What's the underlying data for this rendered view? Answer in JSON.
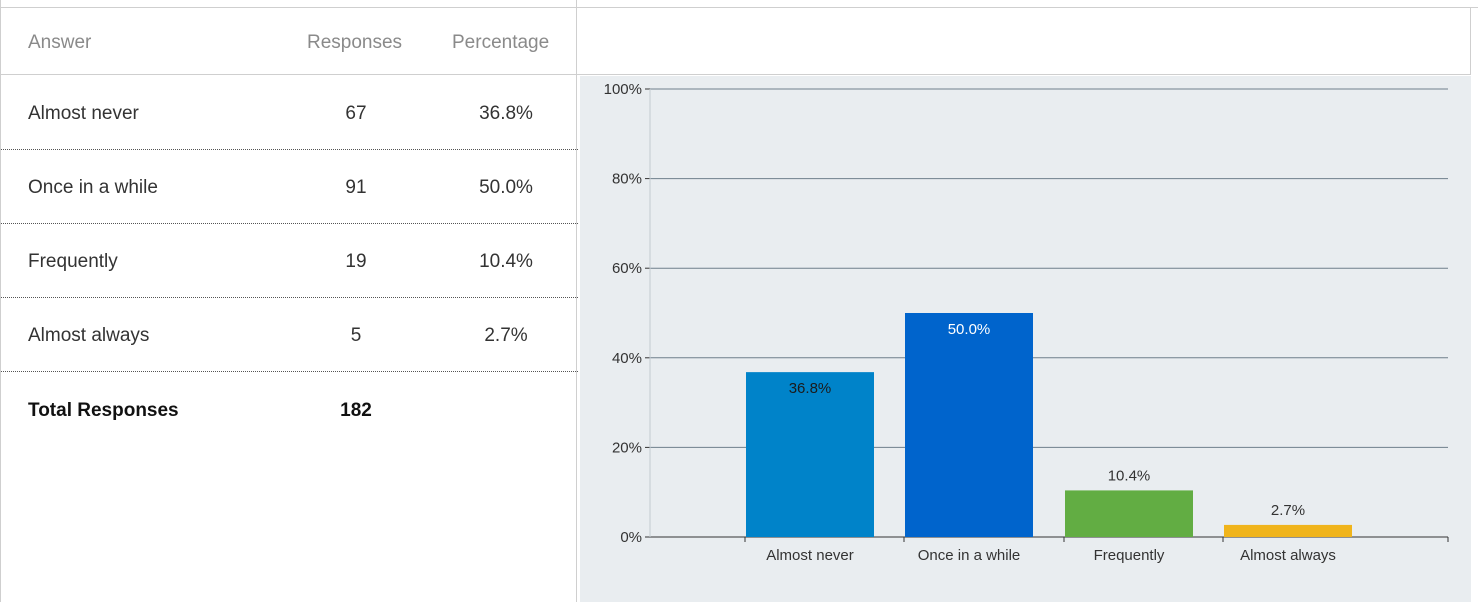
{
  "table": {
    "headers": {
      "answer": "Answer",
      "responses": "Responses",
      "percentage": "Percentage"
    },
    "rows": [
      {
        "answer": "Almost never",
        "responses": "67",
        "percentage": "36.8%"
      },
      {
        "answer": "Once in a while",
        "responses": "91",
        "percentage": "50.0%"
      },
      {
        "answer": "Frequently",
        "responses": "19",
        "percentage": "10.4%"
      },
      {
        "answer": "Almost always",
        "responses": "5",
        "percentage": "2.7%"
      }
    ],
    "total": {
      "label": "Total Responses",
      "value": "182"
    }
  },
  "chart_data": {
    "type": "bar",
    "categories": [
      "Almost never",
      "Once in a while",
      "Frequently",
      "Almost always"
    ],
    "values": [
      36.8,
      50.0,
      10.4,
      2.7
    ],
    "data_labels": [
      "36.8%",
      "50.0%",
      "10.4%",
      "2.7%"
    ],
    "colors": [
      "#0083c9",
      "#0064cc",
      "#62ad43",
      "#f0b41b"
    ],
    "ylim": [
      0,
      100
    ],
    "yticks": [
      0,
      20,
      40,
      60,
      80,
      100
    ],
    "ytick_labels": [
      "0%",
      "20%",
      "40%",
      "60%",
      "80%",
      "100%"
    ],
    "grid": true,
    "legend": "none"
  }
}
